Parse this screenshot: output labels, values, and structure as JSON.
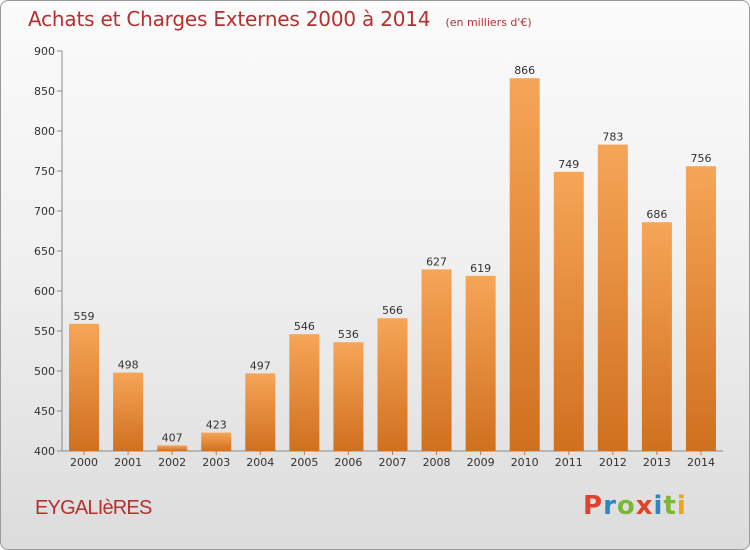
{
  "chart_data": {
    "type": "bar",
    "title": "Achats et Charges Externes 2000 à 2014",
    "subtitle": "(en milliers d'€)",
    "categories": [
      "2000",
      "2001",
      "2002",
      "2003",
      "2004",
      "2005",
      "2006",
      "2007",
      "2008",
      "2009",
      "2010",
      "2011",
      "2012",
      "2013",
      "2014"
    ],
    "values": [
      559,
      498,
      407,
      423,
      497,
      546,
      536,
      566,
      627,
      619,
      866,
      749,
      783,
      686,
      756
    ],
    "ylim": [
      400,
      900
    ],
    "yticks": [
      400,
      450,
      500,
      550,
      600,
      650,
      700,
      750,
      800,
      850,
      900
    ],
    "grid": false,
    "bar_color": "#f08a2c",
    "data_labels": true
  },
  "footer": {
    "commune": "EYGALIèRES",
    "brand": "Proxiti"
  },
  "colors": {
    "title": "#b5312f",
    "brand_letters": [
      "#e0432c",
      "#2f86c5",
      "#7cb636",
      "#e0432c",
      "#2f86c5",
      "#7cb636",
      "#f0a21e"
    ]
  }
}
